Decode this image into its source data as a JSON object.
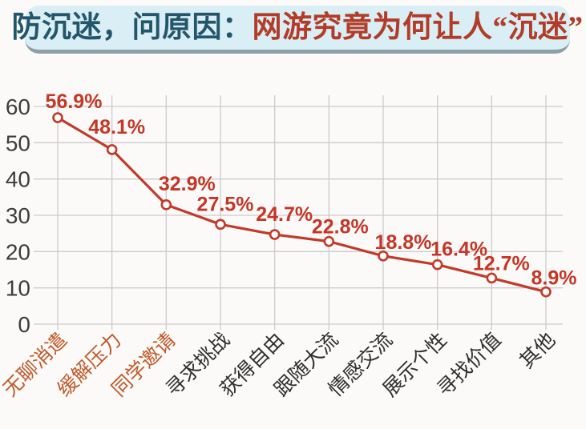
{
  "title": {
    "prefix": "防沉迷，问原因：",
    "highlight": "网游究竟为何让人“沉迷”"
  },
  "colors": {
    "title_prefix": "#24566b",
    "title_highlight": "#b23c27",
    "banner_bg": "#d9eef5",
    "banner_shadow": "#8da0a6",
    "page_bg": "#fbfaf8",
    "line": "#c23a29",
    "marker_fill": "#fdfcfa",
    "data_label": "#c43727",
    "grid": "#cccccc",
    "axis_label": "#3d3d3d",
    "category_highlight": "#c05a2b",
    "category_default": "#2f2f2f"
  },
  "chart_data": {
    "type": "line",
    "categories": [
      "无聊消遣",
      "缓解压力",
      "同学邀请",
      "寻求挑战",
      "获得自由",
      "跟随大流",
      "情感交流",
      "展示个性",
      "寻找价值",
      "其他"
    ],
    "values": [
      56.9,
      48.1,
      32.9,
      27.5,
      24.7,
      22.8,
      18.8,
      16.4,
      12.7,
      8.9
    ],
    "point_labels": [
      "56.9%",
      "48.1%",
      "32.9%",
      "27.5%",
      "24.7%",
      "22.8%",
      "18.8%",
      "16.4%",
      "12.7%",
      "8.9%"
    ],
    "yticks": [
      0,
      10,
      20,
      30,
      40,
      50,
      60
    ],
    "ylim": [
      0,
      60
    ],
    "xlabel": "",
    "ylabel": "",
    "grid": true,
    "legend": false,
    "highlighted_category_count": 3,
    "marker": "open-circle"
  }
}
